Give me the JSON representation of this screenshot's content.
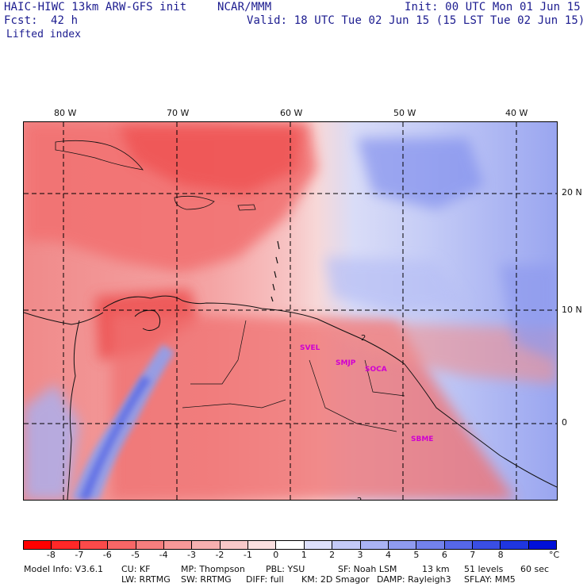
{
  "header": {
    "model_name": "HAIC-HIWC 13km ARW-GFS init",
    "org": "NCAR/MMM",
    "init": "Init: 00 UTC Mon 01 Jun 15",
    "fcst_label": "Fcst:",
    "fcst_value": "42 h",
    "valid": "Valid: 18 UTC Tue 02 Jun 15 (15 LST Tue 02 Jun 15)",
    "field": "Lifted index"
  },
  "map": {
    "lon_labels": [
      "80 W",
      "70 W",
      "60 W",
      "50 W",
      "40 W"
    ],
    "lat_labels": [
      "20 N",
      "10 N",
      "0"
    ],
    "stations": [
      "SVEL",
      "SMJP",
      "SOCA",
      "SBME"
    ],
    "colors": {
      "frame": "#000000",
      "grid_line": "#000000",
      "station_label": "#d000d0"
    }
  },
  "legend": {
    "unit": "°C",
    "ticks": [
      "-8",
      "-7",
      "-6",
      "-5",
      "-4",
      "-3",
      "-2",
      "-1",
      "0",
      "1",
      "2",
      "3",
      "4",
      "5",
      "6",
      "7",
      "8"
    ],
    "colors": [
      "#ff0000",
      "#ff2828",
      "#fb4a4a",
      "#f86666",
      "#f57e7e",
      "#f69898",
      "#f6b0b0",
      "#f8c8c8",
      "#fbe0e0",
      "#ffffff",
      "#dde0fb",
      "#c4caf7",
      "#aab3f4",
      "#8f9bf0",
      "#7382ec",
      "#5667e8",
      "#3a4ee4",
      "#1f36e0",
      "#0010d8"
    ]
  },
  "footer": {
    "line1": [
      "Model Info: V3.6.1",
      "CU: KF",
      "MP: Thompson",
      "PBL: YSU",
      "SF: Noah LSM",
      "13 km",
      "51 levels",
      "60 sec"
    ],
    "line2": [
      "LW: RRTMG",
      "SW: RRTMG",
      "DIFF: full",
      "KM: 2D Smagor",
      "DAMP: Rayleigh3",
      "SFLAY: MM5"
    ]
  }
}
